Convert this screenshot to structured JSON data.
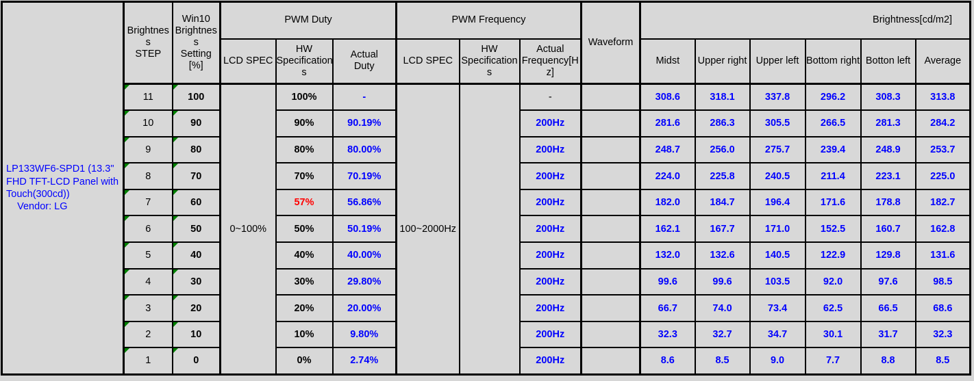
{
  "colors": {
    "cell_bg": "#d8d8d8",
    "border_black": "#000000",
    "value_blue": "#0000ff",
    "alert_red": "#ff0000",
    "text_black": "#000000",
    "flag_green": "#008000",
    "panel_text_blue": "#0000ff"
  },
  "panel": {
    "text": "LP133WF6-SPD1 (13.3\"\nFHD TFT-LCD Panel with\nTouch(300cd))\n    Vendor: LG"
  },
  "headers": {
    "brightness_step": "Brightnes\ns\nSTEP",
    "win10_setting": "Win10\nBrightnes\ns\nSetting\n[%]",
    "pwm_duty": "PWM Duty",
    "pwm_frequency": "PWM Frequency",
    "waveform": "Waveform",
    "brightness_group": "Brightness[cd/m2]",
    "lcd_spec_duty": "LCD SPEC",
    "hw_spec_duty": "HW\nSpecification\ns",
    "actual_duty": "Actual\nDuty",
    "lcd_spec_freq": "LCD SPEC",
    "hw_spec_freq": "HW\nSpecification\ns",
    "actual_frequency": "Actual\nFrequency[H\nz]",
    "midst": "Midst",
    "upper_right": "Upper right",
    "upper_left": "Upper left",
    "bottom_right": "Bottom right",
    "botton_left": "Botton left",
    "average": "Average"
  },
  "spec": {
    "duty_lcd_spec": "0~100%",
    "freq_lcd_spec": "100~2000Hz",
    "freq_hw_spec": ""
  },
  "rows": [
    {
      "step": "11",
      "setting": "100",
      "hw_duty": "100%",
      "hw_duty_style": "black",
      "actual_duty": "-",
      "actual_freq": "-",
      "actual_freq_style": "plain",
      "waveform": "",
      "brightness": [
        "308.6",
        "318.1",
        "337.8",
        "296.2",
        "308.3",
        "313.8"
      ]
    },
    {
      "step": "10",
      "setting": "90",
      "hw_duty": "90%",
      "hw_duty_style": "black",
      "actual_duty": "90.19%",
      "actual_freq": "200Hz",
      "waveform": "",
      "brightness": [
        "281.6",
        "286.3",
        "305.5",
        "266.5",
        "281.3",
        "284.2"
      ]
    },
    {
      "step": "9",
      "setting": "80",
      "hw_duty": "80%",
      "hw_duty_style": "black",
      "actual_duty": "80.00%",
      "actual_freq": "200Hz",
      "waveform": "",
      "brightness": [
        "248.7",
        "256.0",
        "275.7",
        "239.4",
        "248.9",
        "253.7"
      ]
    },
    {
      "step": "8",
      "setting": "70",
      "hw_duty": "70%",
      "hw_duty_style": "black",
      "actual_duty": "70.19%",
      "actual_freq": "200Hz",
      "waveform": "",
      "brightness": [
        "224.0",
        "225.8",
        "240.5",
        "211.4",
        "223.1",
        "225.0"
      ]
    },
    {
      "step": "7",
      "setting": "60",
      "hw_duty": "57%",
      "hw_duty_style": "red",
      "actual_duty": "56.86%",
      "actual_freq": "200Hz",
      "waveform": "",
      "brightness": [
        "182.0",
        "184.7",
        "196.4",
        "171.6",
        "178.8",
        "182.7"
      ]
    },
    {
      "step": "6",
      "setting": "50",
      "hw_duty": "50%",
      "hw_duty_style": "black",
      "actual_duty": "50.19%",
      "actual_freq": "200Hz",
      "waveform": "",
      "brightness": [
        "162.1",
        "167.7",
        "171.0",
        "152.5",
        "160.7",
        "162.8"
      ]
    },
    {
      "step": "5",
      "setting": "40",
      "hw_duty": "40%",
      "hw_duty_style": "black",
      "actual_duty": "40.00%",
      "actual_freq": "200Hz",
      "waveform": "",
      "brightness": [
        "132.0",
        "132.6",
        "140.5",
        "122.9",
        "129.8",
        "131.6"
      ]
    },
    {
      "step": "4",
      "setting": "30",
      "hw_duty": "30%",
      "hw_duty_style": "black",
      "actual_duty": "29.80%",
      "actual_freq": "200Hz",
      "waveform": "",
      "brightness": [
        "99.6",
        "99.6",
        "103.5",
        "92.0",
        "97.6",
        "98.5"
      ]
    },
    {
      "step": "3",
      "setting": "20",
      "hw_duty": "20%",
      "hw_duty_style": "black",
      "actual_duty": "20.00%",
      "actual_freq": "200Hz",
      "waveform": "",
      "brightness": [
        "66.7",
        "74.0",
        "73.4",
        "62.5",
        "66.5",
        "68.6"
      ]
    },
    {
      "step": "2",
      "setting": "10",
      "hw_duty": "10%",
      "hw_duty_style": "black",
      "actual_duty": "9.80%",
      "actual_freq": "200Hz",
      "waveform": "",
      "brightness": [
        "32.3",
        "32.7",
        "34.7",
        "30.1",
        "31.7",
        "32.3"
      ]
    },
    {
      "step": "1",
      "setting": "0",
      "hw_duty": "0%",
      "hw_duty_style": "black",
      "actual_duty": "2.74%",
      "actual_freq": "200Hz",
      "waveform": "",
      "brightness": [
        "8.6",
        "8.5",
        "9.0",
        "7.7",
        "8.8",
        "8.5"
      ]
    }
  ]
}
